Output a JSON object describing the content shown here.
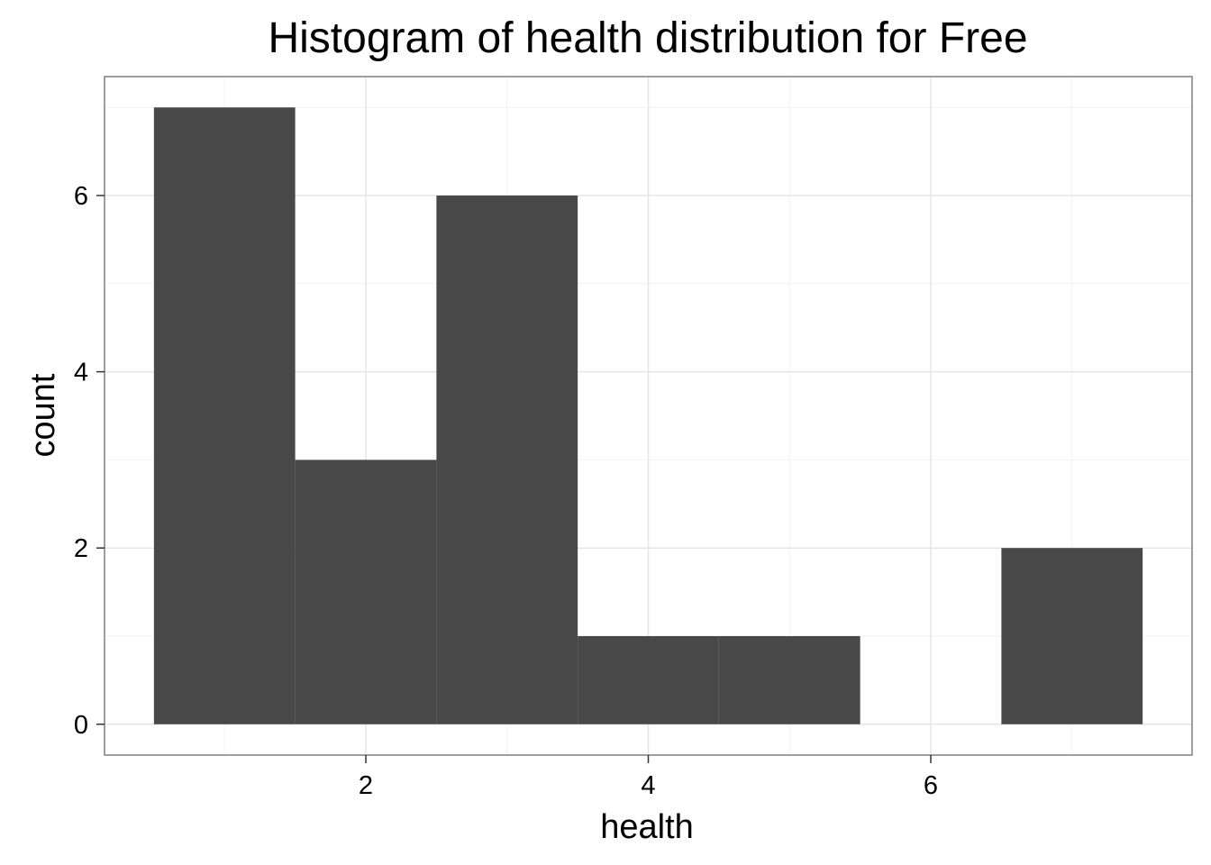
{
  "chart_data": {
    "type": "bar",
    "title": "Histogram of health distribution for Free",
    "xlabel": "health",
    "ylabel": "count",
    "bins": [
      {
        "x0": 0.5,
        "x1": 1.5,
        "count": 7
      },
      {
        "x0": 1.5,
        "x1": 2.5,
        "count": 3
      },
      {
        "x0": 2.5,
        "x1": 3.5,
        "count": 6
      },
      {
        "x0": 3.5,
        "x1": 4.5,
        "count": 1
      },
      {
        "x0": 4.5,
        "x1": 5.5,
        "count": 1
      },
      {
        "x0": 5.5,
        "x1": 6.5,
        "count": 0
      },
      {
        "x0": 6.5,
        "x1": 7.5,
        "count": 2
      }
    ],
    "xticks": [
      2,
      4,
      6
    ],
    "yticks": [
      0,
      2,
      4,
      6
    ],
    "xlim": [
      0.15,
      7.85
    ],
    "ylim": [
      -0.35,
      7.35
    ],
    "grid": true,
    "colors": {
      "bar": "#484848",
      "panel_border": "#7f7f7f",
      "grid_major": "#e5e5e5",
      "grid_minor": "#f2f2f2"
    }
  }
}
